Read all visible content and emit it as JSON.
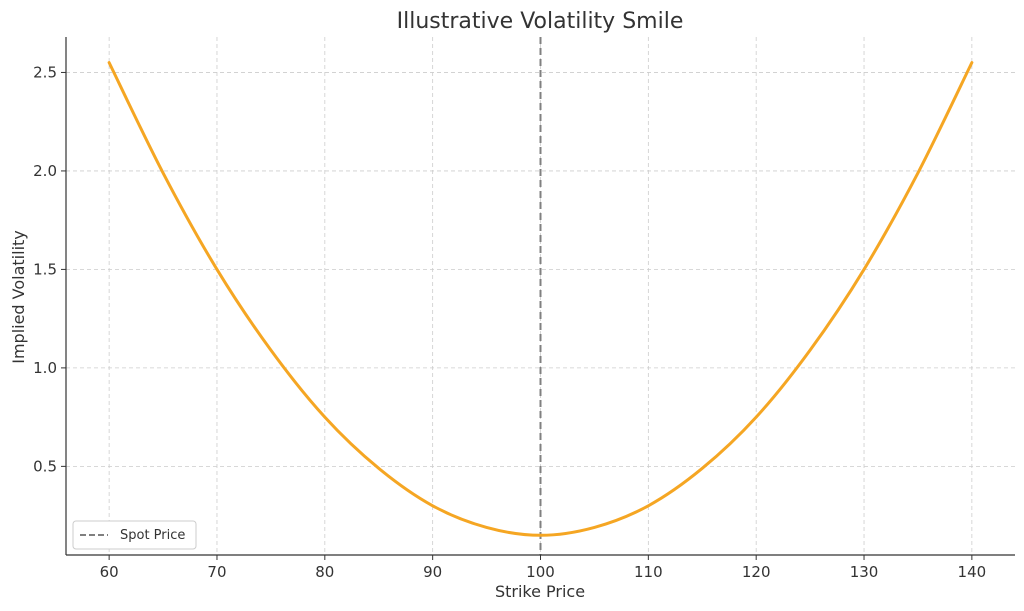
{
  "chart_data": {
    "type": "line",
    "title": "Illustrative Volatility Smile",
    "xlabel": "Strike Price",
    "ylabel": "Implied Volatility",
    "xlim": [
      56,
      144
    ],
    "ylim": [
      0.05,
      2.68
    ],
    "x_ticks": [
      60,
      70,
      80,
      90,
      100,
      110,
      120,
      130,
      140
    ],
    "y_ticks": [
      0.5,
      1.0,
      1.5,
      2.0,
      2.5
    ],
    "x_tick_labels": [
      "60",
      "70",
      "80",
      "90",
      "100",
      "110",
      "120",
      "130",
      "140"
    ],
    "y_tick_labels": [
      "0.5",
      "1.0",
      "1.5",
      "2.0",
      "2.5"
    ],
    "grid": true,
    "legend_position": "lower-left",
    "series": [
      {
        "color": "#f5a623",
        "x": [
          60,
          65,
          70,
          75,
          80,
          85,
          90,
          95,
          100,
          105,
          110,
          115,
          120,
          125,
          130,
          135,
          140
        ],
        "y": [
          2.55,
          1.99,
          1.5,
          1.09,
          0.75,
          0.49,
          0.3,
          0.19,
          0.15,
          0.19,
          0.3,
          0.49,
          0.75,
          1.09,
          1.5,
          1.99,
          2.55
        ]
      }
    ],
    "vlines": [
      {
        "name": "Spot Price",
        "x": 100,
        "color": "#808080",
        "style": "dashed"
      }
    ]
  }
}
